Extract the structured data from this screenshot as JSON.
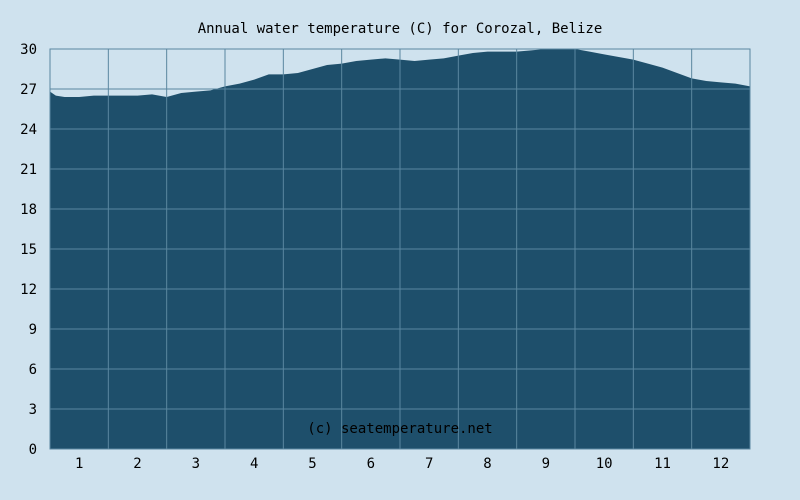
{
  "chart_data": {
    "type": "area",
    "title": "Annual water temperature (C) for Corozal, Belize",
    "xlabel": "",
    "ylabel": "",
    "x_tick_labels": [
      "1",
      "2",
      "3",
      "4",
      "5",
      "6",
      "7",
      "8",
      "9",
      "10",
      "11",
      "12"
    ],
    "y_tick_labels": [
      "0",
      "3",
      "6",
      "9",
      "12",
      "15",
      "18",
      "21",
      "24",
      "27",
      "30"
    ],
    "ylim": [
      0,
      30
    ],
    "xlim": [
      0.5,
      12.5
    ],
    "grid": true,
    "legend": "none",
    "x": [
      0.5,
      0.6,
      0.75,
      1.0,
      1.25,
      1.5,
      1.75,
      2.0,
      2.25,
      2.5,
      2.75,
      3.0,
      3.25,
      3.5,
      3.75,
      4.0,
      4.25,
      4.5,
      4.75,
      5.0,
      5.25,
      5.5,
      5.75,
      6.0,
      6.25,
      6.5,
      6.75,
      7.0,
      7.25,
      7.5,
      7.75,
      8.0,
      8.25,
      8.5,
      8.75,
      9.0,
      9.25,
      9.5,
      9.75,
      10.0,
      10.25,
      10.5,
      10.75,
      11.0,
      11.25,
      11.5,
      11.75,
      12.0,
      12.25,
      12.5
    ],
    "values": [
      26.8,
      26.5,
      26.4,
      26.4,
      26.5,
      26.5,
      26.5,
      26.5,
      26.6,
      26.4,
      26.7,
      26.8,
      26.9,
      27.2,
      27.4,
      27.7,
      28.1,
      28.1,
      28.2,
      28.5,
      28.8,
      28.9,
      29.1,
      29.2,
      29.3,
      29.2,
      29.1,
      29.2,
      29.3,
      29.5,
      29.7,
      29.8,
      29.8,
      29.8,
      29.9,
      30.0,
      30.0,
      30.0,
      29.8,
      29.6,
      29.4,
      29.2,
      28.9,
      28.6,
      28.2,
      27.8,
      27.6,
      27.5,
      27.4,
      27.2
    ],
    "watermark": "(c) seatemperature.net",
    "colors": {
      "background": "#cfe2ee",
      "fill": "#1e4f6b",
      "grid": "#5a87a0",
      "text": "#000000",
      "watermark": "#ffffff"
    }
  }
}
